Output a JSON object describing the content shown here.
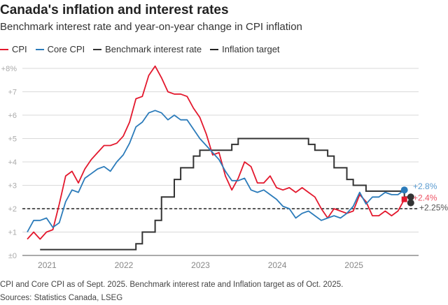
{
  "title": "Canada's inflation and interest rates",
  "subtitle": "Benchmark interest rate and year-on-year change in CPI inflation",
  "footnote": "CPI and Core CPI as of Sept. 2025. Benchmark interest rate and Inflation target as of Oct. 2025.",
  "sources": "Sources: Statistics Canada, LSEG",
  "chart_data": {
    "type": "line",
    "start_month": "2020-10",
    "y_ticks": [
      "±0",
      "+1",
      "+2",
      "+3",
      "+4",
      "+5",
      "+6",
      "+7",
      "+8%"
    ],
    "ylim": [
      0,
      8
    ],
    "x_ticks": [
      "2021",
      "2022",
      "2023",
      "2024",
      "2025"
    ],
    "grid": true,
    "legend_position": "top-left",
    "series": [
      {
        "name": "CPI",
        "color": "#e3182d",
        "end_label": "+2.4%",
        "values": [
          0.7,
          1.0,
          0.7,
          1.0,
          1.1,
          2.2,
          3.4,
          3.6,
          3.1,
          3.7,
          4.1,
          4.4,
          4.7,
          4.7,
          4.8,
          5.1,
          5.7,
          6.7,
          6.8,
          7.7,
          8.1,
          7.6,
          7.0,
          6.9,
          6.9,
          6.8,
          6.3,
          5.9,
          5.2,
          4.3,
          4.4,
          3.4,
          2.8,
          3.3,
          4.0,
          3.8,
          3.1,
          3.1,
          3.4,
          2.9,
          2.8,
          2.9,
          2.7,
          2.9,
          2.7,
          2.5,
          2.0,
          1.6,
          2.0,
          1.9,
          1.8,
          1.9,
          2.6,
          2.3,
          1.7,
          1.7,
          1.9,
          1.7,
          1.9,
          2.4
        ]
      },
      {
        "name": "Core CPI",
        "color": "#2b7bba",
        "end_label": "+2.8%",
        "values": [
          1.0,
          1.5,
          1.5,
          1.6,
          1.2,
          1.4,
          2.3,
          2.8,
          2.7,
          3.3,
          3.5,
          3.7,
          3.8,
          3.6,
          4.0,
          4.3,
          4.8,
          5.5,
          5.7,
          6.1,
          6.2,
          6.1,
          5.8,
          6.0,
          5.8,
          5.8,
          5.4,
          5.0,
          4.7,
          4.4,
          4.1,
          3.6,
          3.2,
          3.2,
          3.3,
          2.8,
          2.7,
          2.8,
          2.6,
          2.4,
          2.1,
          2.0,
          1.6,
          1.8,
          1.9,
          1.7,
          1.5,
          1.6,
          1.7,
          1.6,
          1.8,
          2.1,
          2.7,
          2.2,
          2.5,
          2.5,
          2.7,
          2.6,
          2.6,
          2.8
        ]
      },
      {
        "name": "Benchmark interest rate",
        "color": "#333333",
        "end_label": "+2.25%",
        "steps": [
          [
            "2020-12",
            0.25
          ],
          [
            "2022-03",
            0.5
          ],
          [
            "2022-04",
            1.0
          ],
          [
            "2022-06",
            1.5
          ],
          [
            "2022-07",
            2.5
          ],
          [
            "2022-09",
            3.25
          ],
          [
            "2022-10",
            3.75
          ],
          [
            "2022-12",
            4.25
          ],
          [
            "2023-01",
            4.5
          ],
          [
            "2023-06",
            4.75
          ],
          [
            "2023-07",
            5.0
          ],
          [
            "2024-06",
            4.75
          ],
          [
            "2024-07",
            4.5
          ],
          [
            "2024-09",
            4.25
          ],
          [
            "2024-10",
            3.75
          ],
          [
            "2024-12",
            3.25
          ],
          [
            "2025-01",
            3.0
          ],
          [
            "2025-03",
            2.75
          ],
          [
            "2025-09",
            2.5
          ],
          [
            "2025-10",
            2.25
          ]
        ]
      },
      {
        "name": "Inflation target",
        "color": "#222222",
        "value": 2.0
      }
    ]
  }
}
